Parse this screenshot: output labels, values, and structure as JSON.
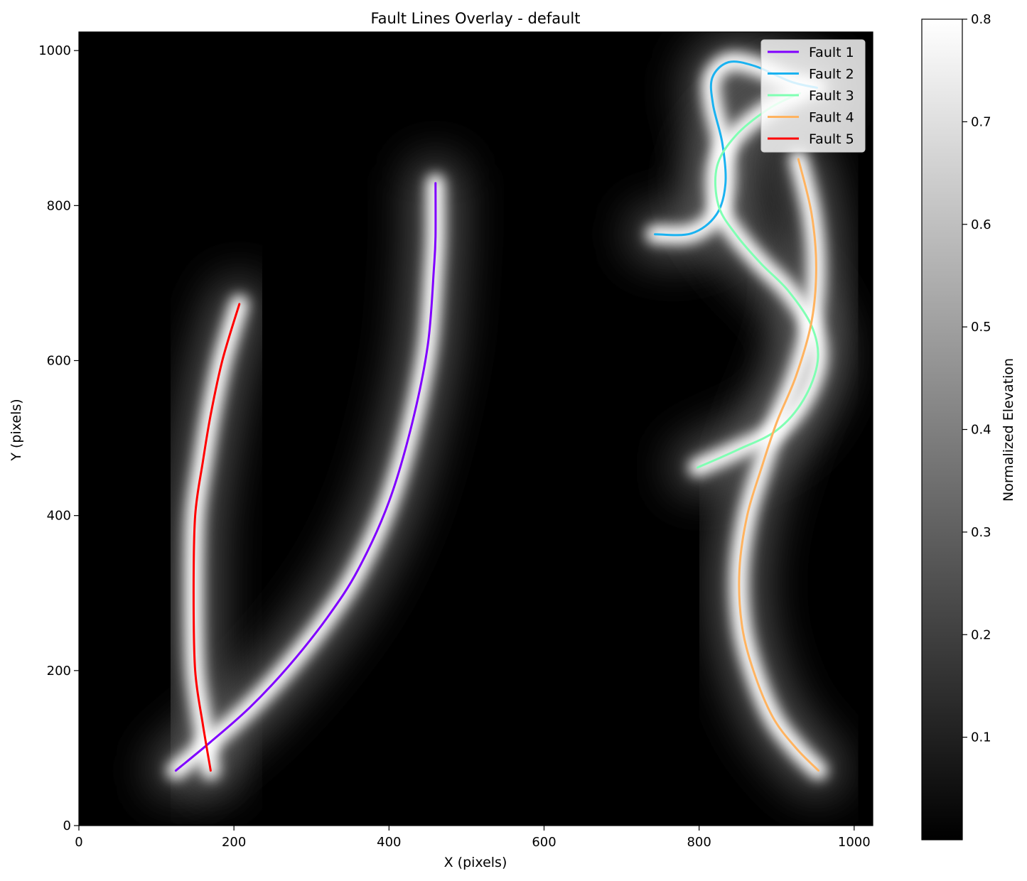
{
  "chart_data": {
    "type": "line",
    "title": "Fault Lines Overlay - default",
    "xlabel": "X (pixels)",
    "ylabel": "Y (pixels)",
    "xlim": [
      0,
      1024
    ],
    "ylim": [
      0,
      1024
    ],
    "x_ticks": [
      0,
      200,
      400,
      600,
      800,
      1000
    ],
    "y_ticks": [
      0,
      200,
      400,
      600,
      800,
      1000
    ],
    "background": "grayscale elevation raster, brightest along fault traces",
    "legend": {
      "position": "top-right",
      "entries": [
        "Fault 1",
        "Fault 2",
        "Fault 3",
        "Fault 4",
        "Fault 5"
      ]
    },
    "colorbar": {
      "label": "Normalized Elevation",
      "colormap": "gray",
      "range": [
        0.0,
        0.8
      ],
      "ticks": [
        0.1,
        0.2,
        0.3,
        0.4,
        0.5,
        0.6,
        0.7,
        0.8
      ],
      "tick_labels": [
        "0.1",
        "0.2",
        "0.3",
        "0.4",
        "0.5",
        "0.6",
        "0.7",
        "0.8"
      ]
    },
    "series": [
      {
        "name": "Fault 1",
        "color": "#8000ff",
        "points": [
          [
            125,
            71
          ],
          [
            170,
            108
          ],
          [
            220,
            152
          ],
          [
            270,
            205
          ],
          [
            320,
            268
          ],
          [
            360,
            330
          ],
          [
            400,
            418
          ],
          [
            430,
            520
          ],
          [
            450,
            620
          ],
          [
            458,
            720
          ],
          [
            460,
            760
          ],
          [
            460,
            829
          ]
        ]
      },
      {
        "name": "Fault 2",
        "color": "#1ab2f0",
        "points": [
          [
            743,
            763
          ],
          [
            790,
            764
          ],
          [
            822,
            788
          ],
          [
            834,
            828
          ],
          [
            830,
            880
          ],
          [
            818,
            930
          ],
          [
            817,
            965
          ],
          [
            838,
            985
          ],
          [
            872,
            980
          ],
          [
            918,
            960
          ],
          [
            952,
            952
          ]
        ]
      },
      {
        "name": "Fault 3",
        "color": "#80ffb3",
        "points": [
          [
            798,
            462
          ],
          [
            850,
            485
          ],
          [
            900,
            510
          ],
          [
            935,
            550
          ],
          [
            953,
            600
          ],
          [
            945,
            645
          ],
          [
            915,
            690
          ],
          [
            880,
            725
          ],
          [
            848,
            762
          ],
          [
            825,
            800
          ],
          [
            823,
            850
          ],
          [
            847,
            890
          ],
          [
            890,
            925
          ],
          [
            930,
            945
          ]
        ]
      },
      {
        "name": "Fault 4",
        "color": "#ffb360",
        "points": [
          [
            954,
            71
          ],
          [
            925,
            100
          ],
          [
            895,
            140
          ],
          [
            870,
            200
          ],
          [
            855,
            260
          ],
          [
            852,
            330
          ],
          [
            862,
            400
          ],
          [
            880,
            460
          ],
          [
            900,
            520
          ],
          [
            925,
            580
          ],
          [
            945,
            650
          ],
          [
            951,
            720
          ],
          [
            945,
            790
          ],
          [
            928,
            860
          ]
        ]
      },
      {
        "name": "Fault 5",
        "color": "#ff0000",
        "points": [
          [
            170,
            71
          ],
          [
            160,
            130
          ],
          [
            150,
            200
          ],
          [
            148,
            300
          ],
          [
            150,
            400
          ],
          [
            160,
            470
          ],
          [
            170,
            530
          ],
          [
            185,
            600
          ],
          [
            207,
            673
          ]
        ]
      }
    ]
  }
}
